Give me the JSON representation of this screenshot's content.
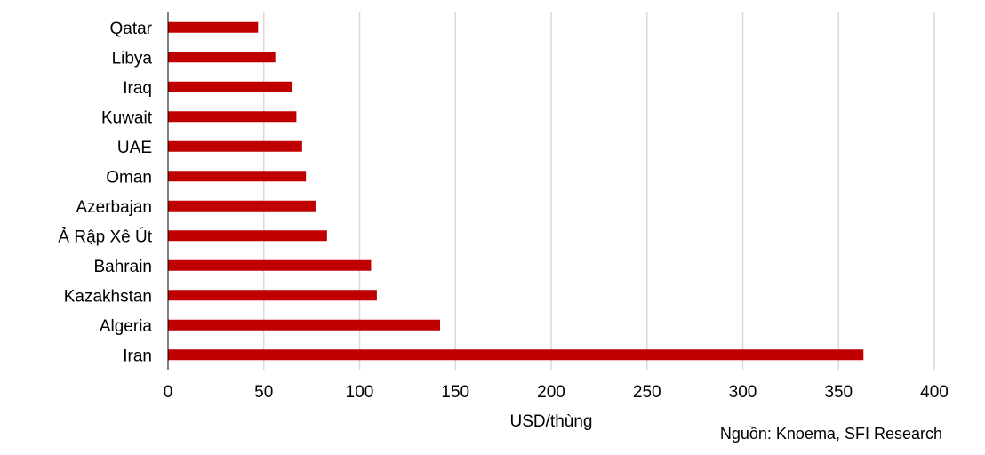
{
  "chart_data": {
    "type": "bar",
    "orientation": "horizontal",
    "categories": [
      "Qatar",
      "Libya",
      "Iraq",
      "Kuwait",
      "UAE",
      "Oman",
      "Azerbajan",
      "Ả Rập Xê Út",
      "Bahrain",
      "Kazakhstan",
      "Algeria",
      "Iran"
    ],
    "values": [
      47,
      56,
      65,
      67,
      70,
      72,
      77,
      83,
      106,
      109,
      142,
      363
    ],
    "xlabel": "USD/thùng",
    "ylabel": "",
    "xlim": [
      0,
      400
    ],
    "xticks": [
      "0",
      "50",
      "100",
      "150",
      "200",
      "250",
      "300",
      "350",
      "400"
    ],
    "grid": "vertical",
    "bar_color": "#C00000",
    "grid_color": "#D9D9D9"
  },
  "source_note": "Nguồn: Knoema, SFI Research"
}
